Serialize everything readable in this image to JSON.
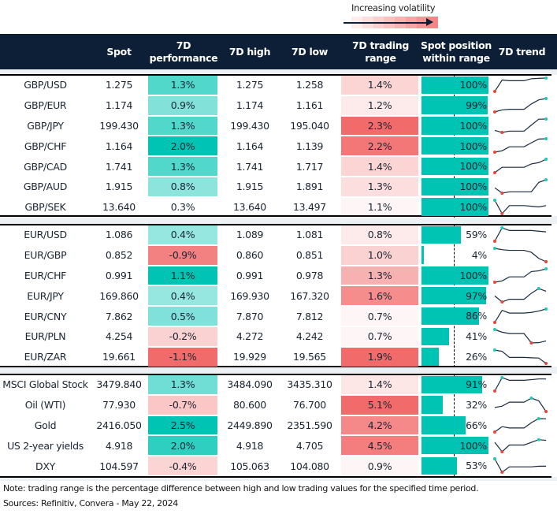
{
  "legend": {
    "label": "Increasing volatility"
  },
  "columns": [
    "",
    "Spot",
    "7D\nperformance",
    "7D high",
    "7D low",
    "7D trading\nrange",
    "Spot position\nwithin range",
    "7D trend"
  ],
  "colors": {
    "header_bg": "#0d1f36",
    "teal": "#00c4b3",
    "red": "#f26b6b",
    "min_marker": "#e8453c",
    "max_marker": "#1ec9b8"
  },
  "groups": [
    {
      "rows": [
        {
          "name": "GBP/USD",
          "spot": "1.275",
          "perf": "1.3%",
          "high": "1.275",
          "low": "1.258",
          "range": "1.4%",
          "position": 100,
          "position_label": "100%",
          "trend": [
            0,
            85,
            80,
            80,
            80,
            95,
            98,
            100
          ]
        },
        {
          "name": "GBP/EUR",
          "spot": "1.174",
          "perf": "0.9%",
          "high": "1.174",
          "low": "1.161",
          "range": "1.2%",
          "position": 99,
          "position_label": "99%",
          "trend": [
            0,
            15,
            20,
            20,
            20,
            60,
            90,
            100
          ]
        },
        {
          "name": "GBP/JPY",
          "spot": "199.430",
          "perf": "1.3%",
          "high": "199.430",
          "low": "195.040",
          "range": "2.3%",
          "position": 100,
          "position_label": "100%",
          "trend": [
            15,
            0,
            10,
            10,
            10,
            55,
            99,
            100
          ]
        },
        {
          "name": "GBP/CHF",
          "spot": "1.164",
          "perf": "2.0%",
          "high": "1.164",
          "low": "1.139",
          "range": "2.2%",
          "position": 100,
          "position_label": "100%",
          "trend": [
            0,
            10,
            40,
            40,
            40,
            70,
            98,
            100
          ]
        },
        {
          "name": "GBP/CAD",
          "spot": "1.741",
          "perf": "1.3%",
          "high": "1.741",
          "low": "1.717",
          "range": "1.4%",
          "position": 100,
          "position_label": "100%",
          "trend": [
            0,
            40,
            40,
            40,
            40,
            65,
            75,
            100
          ]
        },
        {
          "name": "GBP/AUD",
          "spot": "1.915",
          "perf": "0.8%",
          "high": "1.915",
          "low": "1.891",
          "range": "1.3%",
          "position": 100,
          "position_label": "100%",
          "trend": [
            40,
            0,
            10,
            10,
            10,
            10,
            80,
            100
          ]
        },
        {
          "name": "GBP/SEK",
          "spot": "13.640",
          "perf": "0.3%",
          "high": "13.640",
          "low": "13.497",
          "range": "1.1%",
          "position": 100,
          "position_label": "100%",
          "trend": [
            100,
            0,
            60,
            60,
            60,
            55,
            50,
            60
          ]
        }
      ]
    },
    {
      "rows": [
        {
          "name": "EUR/USD",
          "spot": "1.086",
          "perf": "0.4%",
          "high": "1.089",
          "low": "1.081",
          "range": "0.8%",
          "position": 59,
          "position_label": "59%",
          "trend": [
            0,
            100,
            80,
            80,
            80,
            80,
            75,
            70
          ]
        },
        {
          "name": "EUR/GBP",
          "spot": "0.852",
          "perf": "-0.9%",
          "high": "0.860",
          "low": "0.851",
          "range": "1.0%",
          "position": 4,
          "position_label": "4%",
          "trend": [
            100,
            90,
            85,
            85,
            85,
            70,
            25,
            0
          ]
        },
        {
          "name": "EUR/CHF",
          "spot": "0.991",
          "perf": "1.1%",
          "high": "0.991",
          "low": "0.978",
          "range": "1.3%",
          "position": 100,
          "position_label": "100%",
          "trend": [
            0,
            10,
            40,
            40,
            40,
            80,
            85,
            100
          ]
        },
        {
          "name": "EUR/JPY",
          "spot": "169.860",
          "perf": "0.4%",
          "high": "169.930",
          "low": "167.320",
          "range": "1.6%",
          "position": 97,
          "position_label": "97%",
          "trend": [
            45,
            0,
            20,
            20,
            20,
            65,
            100,
            80
          ]
        },
        {
          "name": "EUR/CNY",
          "spot": "7.862",
          "perf": "0.5%",
          "high": "7.870",
          "low": "7.812",
          "range": "0.7%",
          "position": 86,
          "position_label": "86%",
          "trend": [
            0,
            90,
            70,
            70,
            70,
            75,
            85,
            100
          ]
        },
        {
          "name": "EUR/PLN",
          "spot": "4.254",
          "perf": "-0.2%",
          "high": "4.272",
          "low": "4.242",
          "range": "0.7%",
          "position": 41,
          "position_label": "41%",
          "trend": [
            100,
            80,
            70,
            70,
            70,
            0,
            2,
            15
          ]
        },
        {
          "name": "EUR/ZAR",
          "spot": "19.661",
          "perf": "-1.1%",
          "high": "19.929",
          "low": "19.565",
          "range": "1.9%",
          "position": 26,
          "position_label": "26%",
          "trend": [
            100,
            90,
            45,
            45,
            45,
            42,
            40,
            0
          ]
        }
      ]
    },
    {
      "rows": [
        {
          "name": "MSCI Global Stock",
          "spot": "3479.840",
          "perf": "1.3%",
          "high": "3484.090",
          "low": "3435.310",
          "range": "1.4%",
          "position": 91,
          "position_label": "91%",
          "trend": [
            0,
            100,
            80,
            80,
            80,
            85,
            90,
            90
          ]
        },
        {
          "name": "Oil (WTI)",
          "spot": "77.930",
          "perf": "-0.7%",
          "high": "80.600",
          "low": "76.700",
          "range": "5.1%",
          "position": 32,
          "position_label": "32%",
          "trend": [
            30,
            40,
            70,
            70,
            70,
            100,
            80,
            0
          ]
        },
        {
          "name": "Gold",
          "spot": "2416.050",
          "perf": "2.5%",
          "high": "2449.890",
          "low": "2351.590",
          "range": "4.2%",
          "position": 66,
          "position_label": "66%",
          "trend": [
            0,
            40,
            30,
            30,
            30,
            70,
            100,
            99
          ]
        },
        {
          "name": "US 2-year yields",
          "spot": "4.918",
          "perf": "2.0%",
          "high": "4.918",
          "low": "4.705",
          "range": "4.5%",
          "position": 100,
          "position_label": "100%",
          "trend": [
            70,
            0,
            50,
            50,
            50,
            70,
            90,
            85
          ]
        },
        {
          "name": "DXY",
          "spot": "104.597",
          "perf": "-0.4%",
          "high": "105.063",
          "low": "104.080",
          "range": "0.9%",
          "position": 53,
          "position_label": "53%",
          "trend": [
            100,
            0,
            40,
            40,
            40,
            40,
            45,
            45
          ]
        }
      ]
    }
  ],
  "footer": {
    "note": "Note: trading range is the percentage difference between high and low trading values for the specified time period.",
    "sources": "Sources: Refinitiv, Convera - May 22, 2024"
  }
}
